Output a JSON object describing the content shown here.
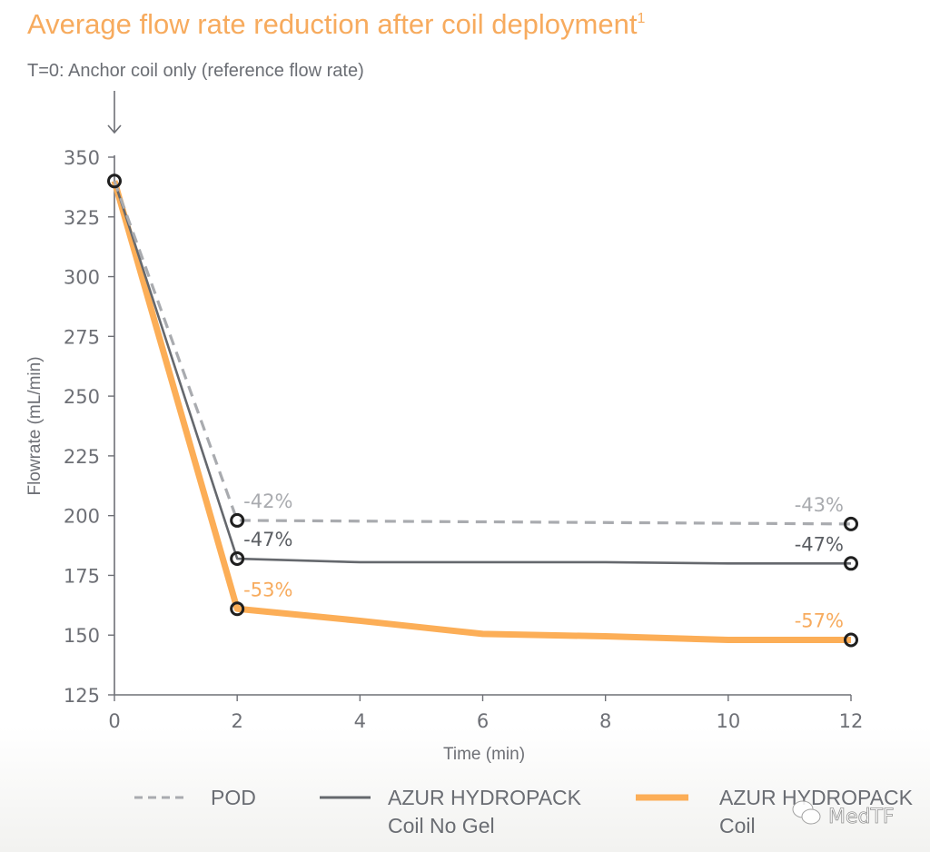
{
  "chart_data": {
    "type": "line",
    "title": "Average flow rate reduction after coil deployment",
    "title_superscript": "1",
    "subtitle": "T=0: Anchor coil only (reference flow rate)",
    "xlabel": "Time (min)",
    "ylabel": "Flowrate (mL/min)",
    "xlim": [
      0,
      12
    ],
    "ylim": [
      125,
      350
    ],
    "x_ticks": [
      0,
      2,
      4,
      6,
      8,
      10,
      12
    ],
    "y_ticks": [
      125,
      150,
      175,
      200,
      225,
      250,
      275,
      300,
      325,
      350
    ],
    "grid": false,
    "legend_position": "bottom",
    "series": [
      {
        "name": "POD",
        "legend_lines": [
          "POD"
        ],
        "style": "dashed",
        "color": "#a9abaf",
        "x": [
          0,
          2,
          12
        ],
        "values": [
          340,
          198,
          196.5
        ],
        "markers_at": [
          0,
          2,
          12
        ],
        "annotations": [
          {
            "x": 2,
            "text": "-42%"
          },
          {
            "x": 12,
            "text": "-43%"
          }
        ]
      },
      {
        "name": "AZUR HYDROPACK Coil No Gel",
        "legend_lines": [
          "AZUR HYDROPACK",
          "Coil No Gel"
        ],
        "style": "solid-thin",
        "color": "#65686d",
        "x": [
          0,
          2,
          4,
          6,
          8,
          10,
          12
        ],
        "values": [
          340,
          182,
          180.5,
          180.5,
          180.5,
          180,
          180
        ],
        "markers_at": [
          0,
          2,
          12
        ],
        "annotations": [
          {
            "x": 2,
            "text": "-47%"
          },
          {
            "x": 12,
            "text": "-47%"
          }
        ]
      },
      {
        "name": "AZUR HYDROPACK Coil",
        "legend_lines": [
          "AZUR HYDROPACK",
          "Coil"
        ],
        "style": "solid-thick",
        "color": "#fcae57",
        "x": [
          0,
          2,
          4,
          6,
          8,
          10,
          12
        ],
        "values": [
          340,
          161,
          156,
          150.5,
          149.5,
          148,
          148
        ],
        "markers_at": [
          0,
          2,
          12
        ],
        "annotations": [
          {
            "x": 2,
            "text": "-53%"
          },
          {
            "x": 12,
            "text": "-57%"
          }
        ]
      }
    ],
    "arrow_annotation": "T=0 reference marker"
  },
  "colors": {
    "title": "#f7ab5e",
    "axis": "#6e7076",
    "marker_stroke": "#1f1f1f",
    "anno_pod": "#a9abaf",
    "anno_nogel": "#5b5e63",
    "anno_coil": "#f7ab5e"
  },
  "watermark": {
    "icon": "wechat-icon",
    "text": "MedTF"
  }
}
